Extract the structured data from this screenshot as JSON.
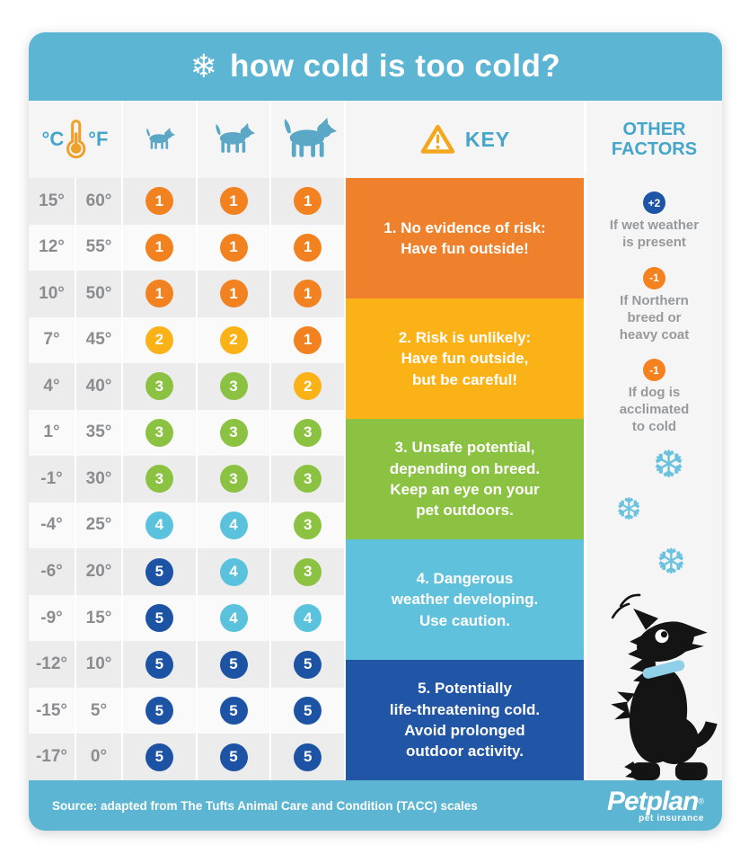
{
  "title": {
    "snowflake_icon": "❄",
    "text": "how cold is too cold?"
  },
  "header": {
    "celsius_label": "°C",
    "fahrenheit_label": "°F",
    "key_label": "KEY",
    "other_factors_label": "OTHER FACTORS",
    "dog_sizes": [
      "small dog",
      "medium dog",
      "large dog"
    ]
  },
  "chart_data": {
    "type": "table",
    "title": "how cold is too cold?",
    "columns": [
      "°C",
      "°F",
      "small dog",
      "medium dog",
      "large dog"
    ],
    "rows": [
      {
        "c": "15°",
        "f": "60°",
        "levels": [
          1,
          1,
          1
        ]
      },
      {
        "c": "12°",
        "f": "55°",
        "levels": [
          1,
          1,
          1
        ]
      },
      {
        "c": "10°",
        "f": "50°",
        "levels": [
          1,
          1,
          1
        ]
      },
      {
        "c": "7°",
        "f": "45°",
        "levels": [
          2,
          2,
          1
        ]
      },
      {
        "c": "4°",
        "f": "40°",
        "levels": [
          3,
          3,
          2
        ]
      },
      {
        "c": "1°",
        "f": "35°",
        "levels": [
          3,
          3,
          3
        ]
      },
      {
        "c": "-1°",
        "f": "30°",
        "levels": [
          3,
          3,
          3
        ]
      },
      {
        "c": "-4°",
        "f": "25°",
        "levels": [
          4,
          4,
          3
        ]
      },
      {
        "c": "-6°",
        "f": "20°",
        "levels": [
          5,
          4,
          3
        ]
      },
      {
        "c": "-9°",
        "f": "15°",
        "levels": [
          5,
          4,
          4
        ]
      },
      {
        "c": "-12°",
        "f": "10°",
        "levels": [
          5,
          5,
          5
        ]
      },
      {
        "c": "-15°",
        "f": "5°",
        "levels": [
          5,
          5,
          5
        ]
      },
      {
        "c": "-17°",
        "f": "0°",
        "levels": [
          5,
          5,
          5
        ]
      }
    ],
    "legend": [
      "1. No evidence of risk: Have fun outside!",
      "2. Risk is unlikely: Have fun outside, but be careful!",
      "3. Unsafe potential, depending on breed. Keep an eye on your pet outdoors.",
      "4. Dangerous weather developing. Use caution.",
      "5. Potentially life-threatening cold. Avoid prolonged outdoor activity.",
      "+2 If wet weather is present",
      "-1 If Northern breed or heavy coat",
      "-1 If dog is acclimated to cold"
    ]
  },
  "key": {
    "items": [
      {
        "num": "1.",
        "lines": [
          "No evidence of risk:",
          "Have fun outside!"
        ],
        "color": "#F0812C"
      },
      {
        "num": "2.",
        "lines": [
          "Risk is unlikely:",
          "Have fun outside,",
          "but be careful!"
        ],
        "color": "#FBB217"
      },
      {
        "num": "3.",
        "lines": [
          "Unsafe potential,",
          "depending on breed.",
          "Keep an eye on your",
          "pet outdoors."
        ],
        "color": "#8CC242"
      },
      {
        "num": "4.",
        "lines": [
          "Dangerous",
          "weather developing.",
          "Use caution."
        ],
        "color": "#60C1DC"
      },
      {
        "num": "5.",
        "lines": [
          "Potentially",
          "life-threatening cold.",
          "Avoid prolonged",
          "outdoor activity."
        ],
        "color": "#2156A7"
      }
    ]
  },
  "other_factors": {
    "items": [
      {
        "badge": "+2",
        "color": "#1F55A6",
        "lines": [
          "If wet weather",
          "is present"
        ]
      },
      {
        "badge": "-1",
        "color": "#F5821F",
        "lines": [
          "If Northern",
          "breed or",
          "heavy coat"
        ]
      },
      {
        "badge": "-1",
        "color": "#F5821F",
        "lines": [
          "If dog is",
          "acclimated",
          "to cold"
        ]
      }
    ],
    "snowflake_glyph": "❆"
  },
  "footer": {
    "source": "Source: adapted from The Tufts Animal Care and Condition (TACC) scales",
    "brand": "Petplan",
    "brand_reg": "®",
    "brand_tagline": "pet insurance"
  },
  "colors": {
    "banner_blue": "#5CB6D3",
    "label_blue": "#45A5CA",
    "dog_icon_blue": "#5AA7C6",
    "thermometer_orange": "#F0A028",
    "warning_triangle": "#F2A71D",
    "temp_text_gray": "#8A8C8F",
    "factor_text_gray": "#97999B",
    "snowflake_blue": "#6BC2DE",
    "row_gray": "#ECECED",
    "row_white": "#FAFAFB",
    "levels": {
      "1": "#F2811F",
      "2": "#FBB217",
      "3": "#8CC242",
      "4": "#5BC2DE",
      "5": "#1D53A4"
    }
  }
}
